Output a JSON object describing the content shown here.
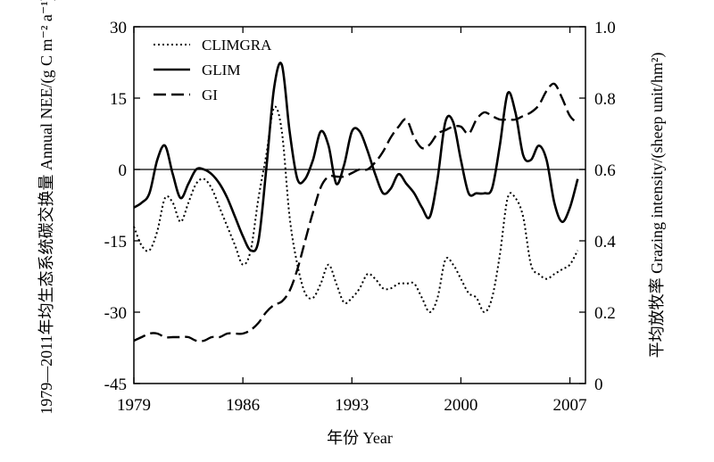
{
  "chart_data": {
    "type": "line",
    "xlabel": "年份 Year",
    "ylabel_left": "1979—2011年均生态系统碳交换量 Annual NEE/(g C m⁻² a⁻¹)",
    "ylabel_right": "平均放牧率 Grazing intensity/(sheep unit/hm²)",
    "x_ticks": [
      "1979",
      "1986",
      "1993",
      "2000",
      "2007"
    ],
    "y_left_ticks": [
      "30",
      "15",
      "0",
      "-15",
      "-30",
      "-45"
    ],
    "y_right_ticks": [
      "1.0",
      "0.8",
      "0.6",
      "0.4",
      "0.2",
      "0"
    ],
    "xlim": [
      1979,
      2008
    ],
    "ylim_left": [
      -45,
      30
    ],
    "ylim_right": [
      0,
      1.0
    ],
    "zero_line": true,
    "legend_position": "top-left",
    "series": [
      {
        "name": "CLIMGRA",
        "axis": "left",
        "style": "dotted",
        "x": [
          1979,
          1979.5,
          1980,
          1980.5,
          1981,
          1981.5,
          1982,
          1982.5,
          1983,
          1983.5,
          1984,
          1984.5,
          1985,
          1985.5,
          1986,
          1986.5,
          1987,
          1987.5,
          1988,
          1988.5,
          1989,
          1989.5,
          1990,
          1990.5,
          1991,
          1991.5,
          1992,
          1992.5,
          1993,
          1993.5,
          1994,
          1994.5,
          1995,
          1995.5,
          1996,
          1996.5,
          1997,
          1997.5,
          1998,
          1998.5,
          1999,
          1999.5,
          2000,
          2000.5,
          2001,
          2001.5,
          2002,
          2002.5,
          2003,
          2003.5,
          2004,
          2004.5,
          2005,
          2005.5,
          2006,
          2006.5,
          2007,
          2007.5
        ],
        "y": [
          -12,
          -16,
          -17,
          -13,
          -6,
          -7,
          -11,
          -7,
          -3,
          -2,
          -4,
          -8,
          -12,
          -16,
          -20,
          -17,
          -6,
          3,
          13,
          8,
          -10,
          -20,
          -26,
          -27,
          -24,
          -20,
          -24,
          -28,
          -27,
          -25,
          -22,
          -23,
          -25,
          -25,
          -24,
          -24,
          -24,
          -27,
          -30,
          -27,
          -19,
          -20,
          -23,
          -26,
          -27,
          -30,
          -27,
          -18,
          -6,
          -6,
          -10,
          -20,
          -22,
          -23,
          -22,
          -21,
          -20,
          -17
        ]
      },
      {
        "name": "GLIM",
        "axis": "left",
        "style": "solid",
        "x": [
          1979,
          1979.5,
          1980,
          1980.5,
          1981,
          1981.5,
          1982,
          1982.5,
          1983,
          1983.5,
          1984,
          1984.5,
          1985,
          1985.5,
          1986,
          1986.5,
          1987,
          1987.5,
          1988,
          1988.5,
          1989,
          1989.5,
          1990,
          1990.5,
          1991,
          1991.5,
          1992,
          1992.5,
          1993,
          1993.5,
          1994,
          1994.5,
          1995,
          1995.5,
          1996,
          1996.5,
          1997,
          1997.5,
          1998,
          1998.5,
          1999,
          1999.5,
          2000,
          2000.5,
          2001,
          2001.5,
          2002,
          2002.5,
          2003,
          2003.5,
          2004,
          2004.5,
          2005,
          2005.5,
          2006,
          2006.5,
          2007,
          2007.5
        ],
        "y": [
          -8,
          -7,
          -5,
          2,
          5,
          -1,
          -6,
          -3,
          0,
          0,
          -1,
          -3,
          -6,
          -10,
          -14,
          -17,
          -15,
          0,
          17,
          22,
          8,
          -2,
          -2,
          2,
          8,
          5,
          -3,
          1,
          8,
          8,
          4,
          -1,
          -5,
          -4,
          -1,
          -3,
          -5,
          -8,
          -10,
          -2,
          10,
          10,
          2,
          -5,
          -5,
          -5,
          -4,
          5,
          16,
          12,
          3,
          2,
          5,
          2,
          -7,
          -11,
          -8,
          -2
        ]
      },
      {
        "name": "GI",
        "axis": "right",
        "style": "dashed",
        "x": [
          1979,
          1979.5,
          1980,
          1980.5,
          1981,
          1981.5,
          1982,
          1982.5,
          1983,
          1983.5,
          1984,
          1984.5,
          1985,
          1985.5,
          1986,
          1986.5,
          1987,
          1987.5,
          1988,
          1988.5,
          1989,
          1989.5,
          1990,
          1990.5,
          1991,
          1991.5,
          1992,
          1992.5,
          1993,
          1993.5,
          1994,
          1994.5,
          1995,
          1995.5,
          1996,
          1996.5,
          1997,
          1997.5,
          1998,
          1998.5,
          1999,
          1999.5,
          2000,
          2000.5,
          2001,
          2001.5,
          2002,
          2002.5,
          2003,
          2003.5,
          2004,
          2004.5,
          2005,
          2005.5,
          2006,
          2006.5,
          2007,
          2007.5
        ],
        "y": [
          0.12,
          0.13,
          0.14,
          0.14,
          0.13,
          0.13,
          0.13,
          0.13,
          0.12,
          0.12,
          0.13,
          0.13,
          0.14,
          0.14,
          0.14,
          0.15,
          0.17,
          0.2,
          0.22,
          0.23,
          0.26,
          0.32,
          0.4,
          0.48,
          0.55,
          0.58,
          0.58,
          0.58,
          0.59,
          0.6,
          0.6,
          0.62,
          0.65,
          0.69,
          0.72,
          0.74,
          0.69,
          0.66,
          0.67,
          0.7,
          0.71,
          0.72,
          0.72,
          0.7,
          0.74,
          0.76,
          0.75,
          0.74,
          0.74,
          0.74,
          0.75,
          0.76,
          0.78,
          0.82,
          0.84,
          0.8,
          0.75,
          0.73
        ]
      }
    ]
  }
}
